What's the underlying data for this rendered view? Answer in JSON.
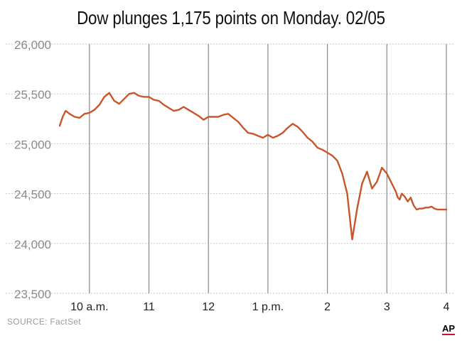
{
  "title": "Dow plunges 1,175 points on Monday. 02/05",
  "source": "SOURCE:  FactSet",
  "logo": "AP",
  "colors": {
    "line": "#c8562c",
    "grid": "#c8c8c8",
    "vline": "#8a8a8a",
    "axis_text": "#8a8a8a",
    "tick_text": "#222222"
  },
  "chart_data": {
    "type": "line",
    "title": "Dow plunges 1,175 points on Monday. 02/05",
    "xlabel": "",
    "ylabel": "",
    "ylim": [
      23500,
      26000
    ],
    "yticks": [
      26000,
      25500,
      25000,
      24500,
      24000,
      23500
    ],
    "ytick_labels": [
      "26,000",
      "25,500",
      "25,000",
      "24,500",
      "24,000",
      "23,500"
    ],
    "xlim": [
      "9:30",
      "16:00"
    ],
    "xticks": [
      "10:00",
      "11:00",
      "12:00",
      "13:00",
      "14:00",
      "15:00",
      "16:00"
    ],
    "xtick_labels": [
      "10 a.m.",
      "11",
      "12",
      "1 p.m.",
      "2",
      "3",
      "4"
    ],
    "grid": "horizontal dotted, vertical solid at each hour",
    "series": [
      {
        "x": [
          "9:30",
          "9:33",
          "9:36",
          "9:40",
          "9:45",
          "9:50",
          "9:55",
          "10:00",
          "10:05",
          "10:10",
          "10:15",
          "10:20",
          "10:25",
          "10:30",
          "10:35",
          "10:40",
          "10:45",
          "10:50",
          "10:55",
          "11:00",
          "11:05",
          "11:10",
          "11:15",
          "11:20",
          "11:25",
          "11:30",
          "11:35",
          "11:40",
          "11:45",
          "11:50",
          "11:55",
          "12:00",
          "12:05",
          "12:10",
          "12:15",
          "12:20",
          "12:25",
          "12:30",
          "12:35",
          "12:40",
          "12:45",
          "12:50",
          "12:55",
          "13:00",
          "13:05",
          "13:10",
          "13:15",
          "13:20",
          "13:25",
          "13:30",
          "13:35",
          "13:40",
          "13:45",
          "13:50",
          "13:55",
          "14:00",
          "14:05",
          "14:10",
          "14:15",
          "14:20",
          "14:25",
          "14:30",
          "14:35",
          "14:40",
          "14:45",
          "14:50",
          "14:55",
          "15:00",
          "15:03",
          "15:06",
          "15:09",
          "15:11",
          "15:13",
          "15:15",
          "15:18",
          "15:21",
          "15:24",
          "15:27",
          "15:30",
          "15:33",
          "15:36",
          "15:39",
          "15:42",
          "15:45",
          "15:48",
          "15:51",
          "15:54",
          "15:57",
          "16:00"
        ],
        "values": [
          25180,
          25270,
          25330,
          25300,
          25270,
          25260,
          25300,
          25310,
          25340,
          25390,
          25470,
          25510,
          25430,
          25400,
          25450,
          25500,
          25510,
          25480,
          25470,
          25470,
          25440,
          25430,
          25390,
          25360,
          25330,
          25340,
          25370,
          25340,
          25310,
          25280,
          25240,
          25270,
          25270,
          25270,
          25290,
          25300,
          25260,
          25220,
          25160,
          25110,
          25100,
          25080,
          25060,
          25090,
          25060,
          25080,
          25110,
          25160,
          25200,
          25170,
          25120,
          25060,
          25020,
          24960,
          24940,
          24910,
          24880,
          24830,
          24700,
          24500,
          24040,
          24350,
          24600,
          24720,
          24550,
          24620,
          24760,
          24700,
          24640,
          24580,
          24520,
          24460,
          24440,
          24500,
          24470,
          24420,
          24460,
          24380,
          24340,
          24350,
          24350,
          24360,
          24360,
          24370,
          24350,
          24340,
          24340,
          24340,
          24340
        ]
      }
    ]
  }
}
